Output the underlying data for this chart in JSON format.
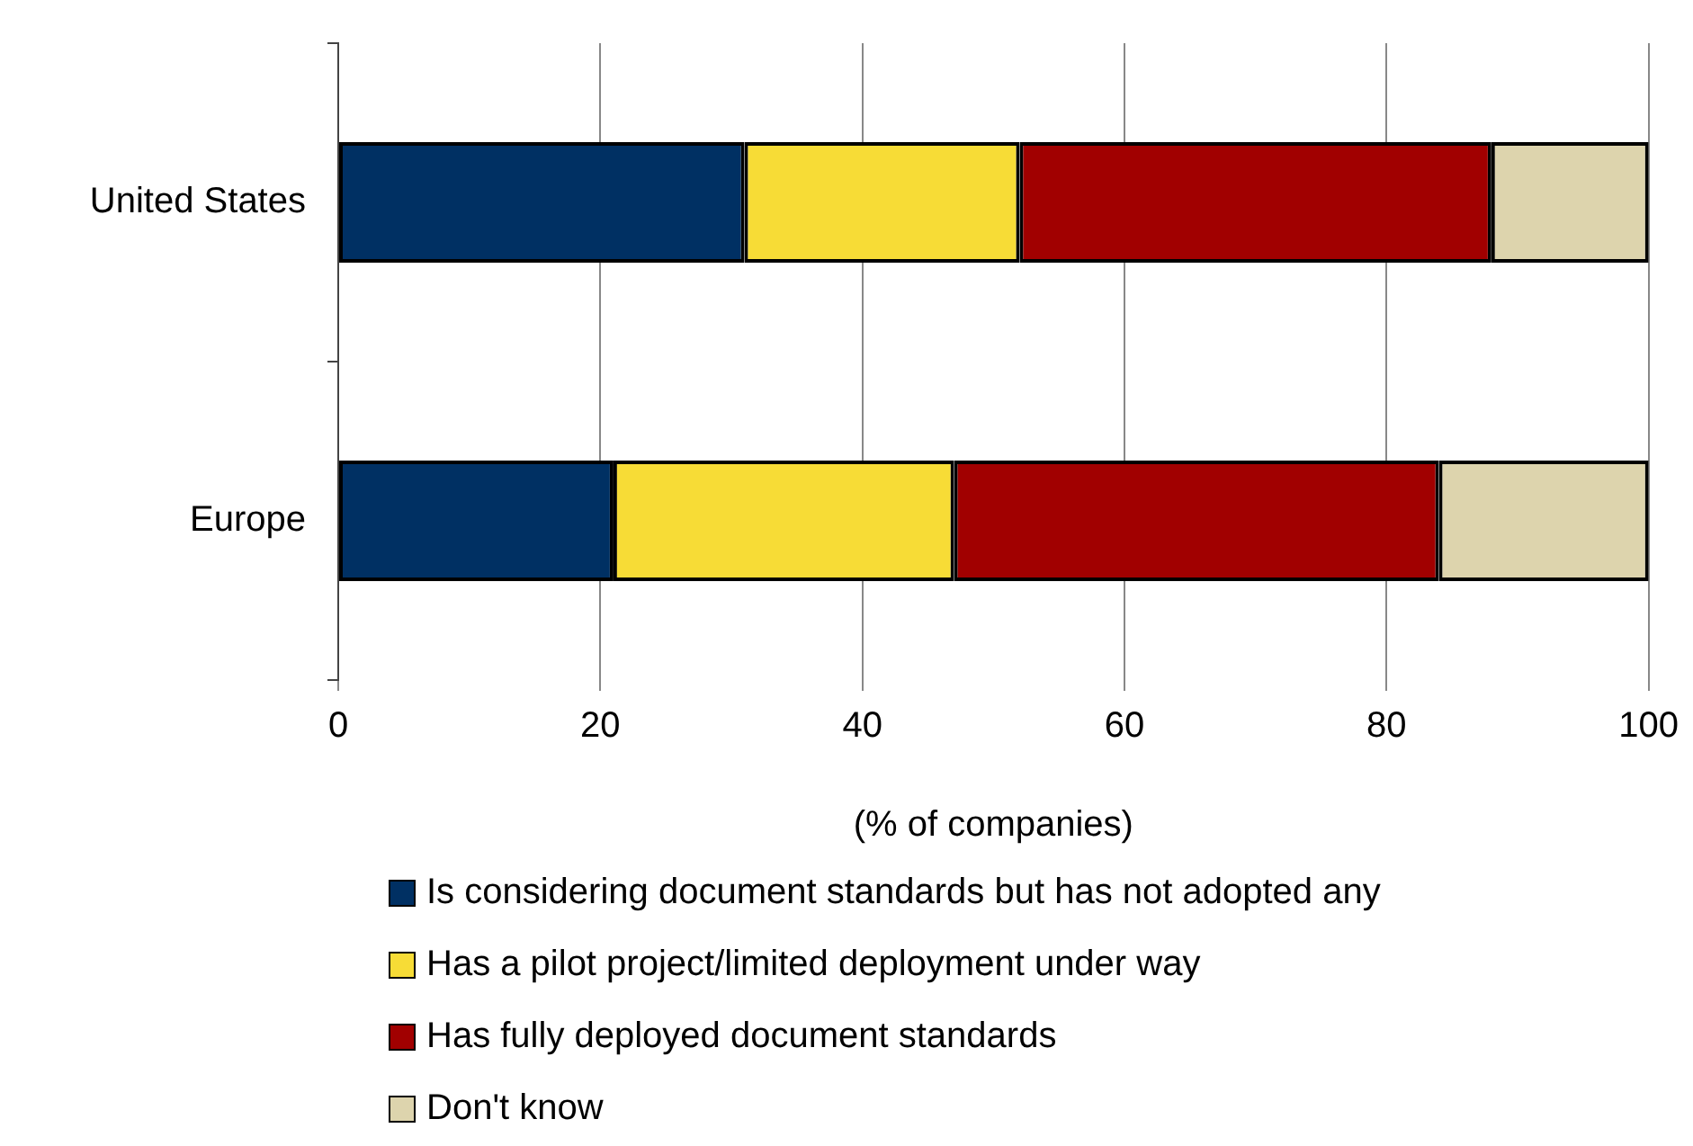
{
  "chart_data": {
    "type": "bar",
    "orientation": "horizontal",
    "stacked": true,
    "categories": [
      "United States",
      "Europe"
    ],
    "series": [
      {
        "name": "Is considering document standards but has not adopted any",
        "color": "#003063",
        "values": [
          31,
          21
        ]
      },
      {
        "name": "Has a pilot project/limited deployment under way",
        "color": "#f7dc36",
        "values": [
          21,
          26
        ]
      },
      {
        "name": "Has fully deployed document standards",
        "color": "#a10000",
        "values": [
          36,
          37
        ]
      },
      {
        "name": "Don't know",
        "color": "#ddd4ad",
        "values": [
          12,
          16
        ]
      }
    ],
    "xlim": [
      0,
      100
    ],
    "xticks": [
      0,
      20,
      40,
      60,
      80,
      100
    ],
    "xlabel": "(% of companies)",
    "grid": "x",
    "legend": "bottom"
  }
}
